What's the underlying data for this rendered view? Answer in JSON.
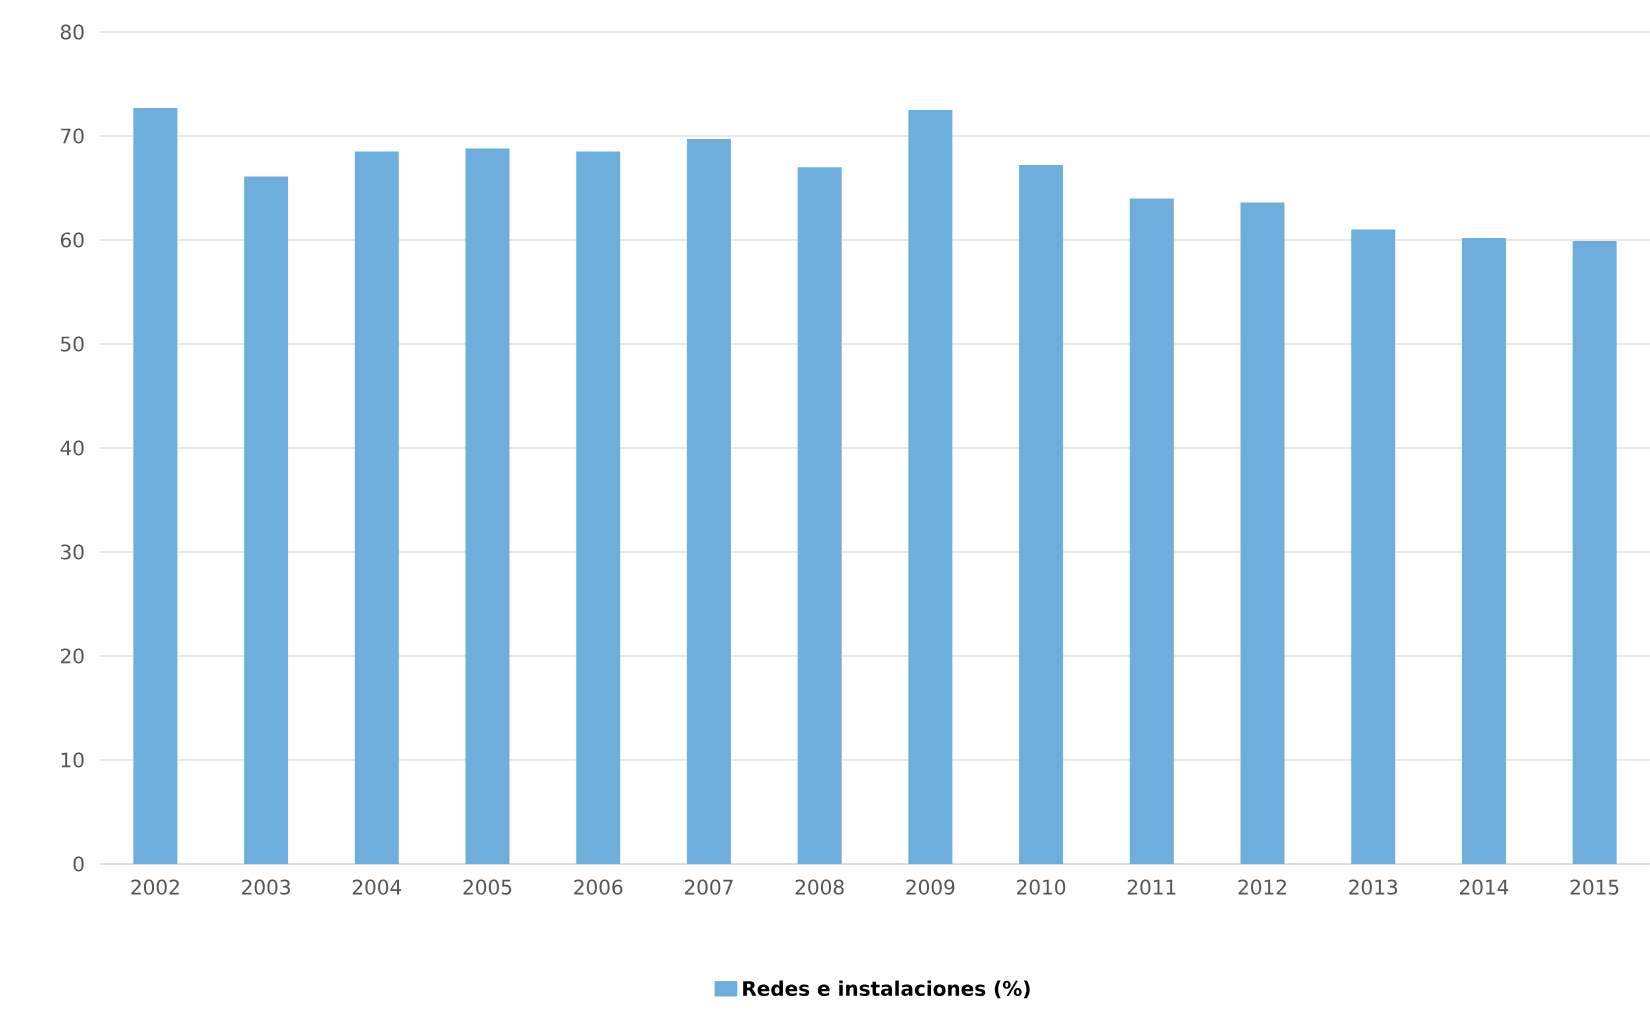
{
  "chart_data": {
    "type": "bar",
    "categories": [
      "2002",
      "2003",
      "2004",
      "2005",
      "2006",
      "2007",
      "2008",
      "2009",
      "2010",
      "2011",
      "2012",
      "2013",
      "2014",
      "2015"
    ],
    "series": [
      {
        "name": "Redes e instalaciones (%)",
        "color": "#6eaedd",
        "values": [
          72.7,
          66.1,
          68.5,
          68.8,
          68.5,
          69.7,
          67.0,
          72.5,
          67.2,
          64.0,
          63.6,
          61.0,
          60.2,
          59.9
        ]
      }
    ],
    "ylim": [
      0,
      80
    ],
    "yticks": [
      0,
      10,
      20,
      30,
      40,
      50,
      60,
      70,
      80
    ],
    "grid": "y",
    "legend": "bottom"
  }
}
